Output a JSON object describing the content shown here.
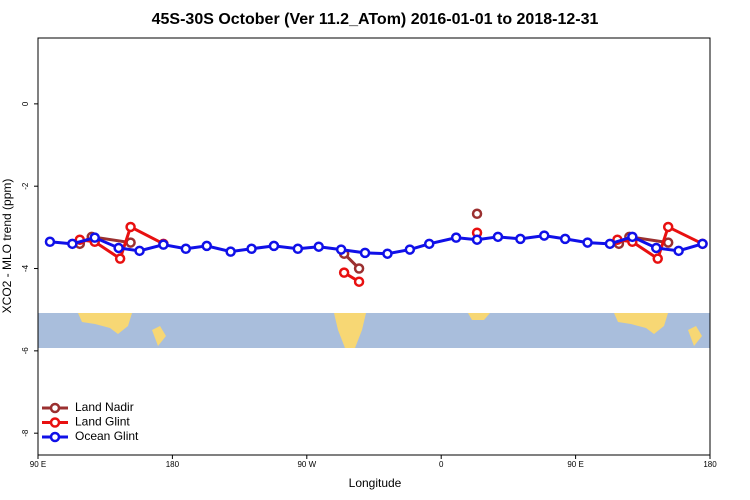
{
  "chart_data": {
    "type": "line",
    "title": "45S-30S October (Ver 11.2_ATom)   2016-01-01 to 2018-12-31",
    "xlabel": "Longitude",
    "ylabel": "XCO2 - MLO trend (ppm)",
    "xlim": [
      90,
      540
    ],
    "ylim": [
      -8.53,
      1.6
    ],
    "xticks": [
      {
        "value": 90,
        "label": "90 E"
      },
      {
        "value": 180,
        "label": "180"
      },
      {
        "value": 270,
        "label": "90 W"
      },
      {
        "value": 360,
        "label": "0"
      },
      {
        "value": 450,
        "label": "90 E"
      },
      {
        "value": 540,
        "label": "180"
      }
    ],
    "yticks": [
      0,
      -2,
      -4,
      -6,
      -8
    ],
    "legend": "bottom-left",
    "series": [
      {
        "name": "Land Nadir",
        "color": "#9b3030",
        "x": [
          118,
          126,
          152,
          null,
          295,
          305,
          null,
          384,
          null,
          479,
          486,
          512
        ],
        "values": [
          -3.4,
          -3.23,
          -3.37,
          null,
          -3.64,
          -4.0,
          null,
          -2.67,
          null,
          -3.4,
          -3.23,
          -3.37
        ]
      },
      {
        "name": "Land Glint",
        "color": "#e81010",
        "x": [
          118,
          128,
          145,
          152,
          174,
          null,
          295,
          305,
          null,
          384,
          null,
          478,
          488,
          505,
          512,
          535
        ],
        "values": [
          -3.3,
          -3.35,
          -3.76,
          -2.99,
          -3.4,
          null,
          -4.1,
          -4.32,
          null,
          -3.13,
          null,
          -3.3,
          -3.35,
          -3.76,
          -2.99,
          -3.4
        ]
      },
      {
        "name": "Ocean Glint",
        "color": "#1010e8",
        "x": [
          98,
          113,
          128,
          144,
          158,
          174,
          189,
          203,
          219,
          233,
          248,
          264,
          278,
          293,
          309,
          324,
          339,
          352,
          370,
          384,
          398,
          413,
          429,
          443,
          458,
          473,
          488,
          504,
          519,
          535
        ],
        "values": [
          -3.35,
          -3.4,
          -3.25,
          -3.5,
          -3.57,
          -3.42,
          -3.52,
          -3.45,
          -3.59,
          -3.52,
          -3.45,
          -3.52,
          -3.47,
          -3.54,
          -3.62,
          -3.64,
          -3.54,
          -3.4,
          -3.25,
          -3.3,
          -3.23,
          -3.28,
          -3.2,
          -3.28,
          -3.37,
          -3.4,
          -3.23,
          -3.5,
          -3.57,
          -3.4
        ]
      }
    ]
  }
}
